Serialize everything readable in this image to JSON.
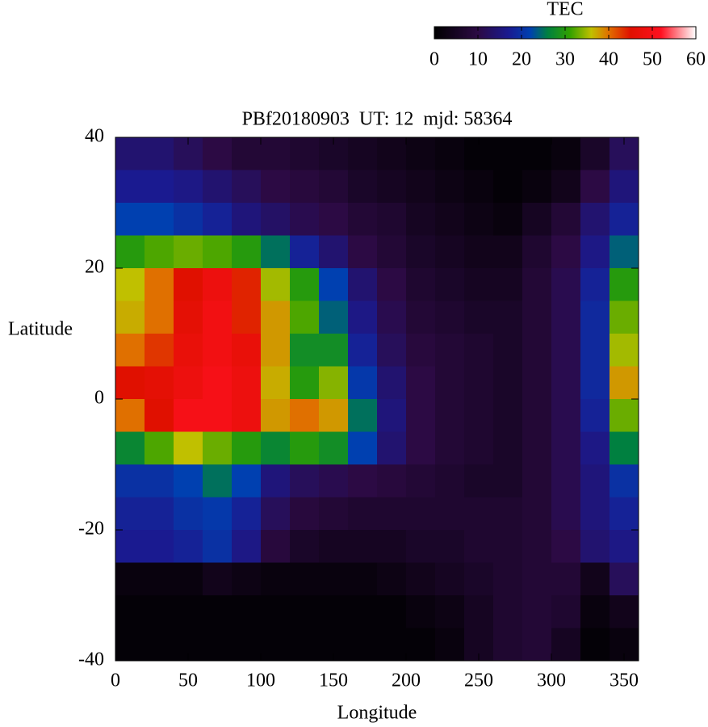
{
  "chart_data": {
    "type": "heatmap",
    "title": "PBf20180903  UT: 12  mjd: 58364",
    "x_label": "Longitude",
    "y_label": "Latitude",
    "colorbar_label": "TEC",
    "x": [
      10,
      30,
      50,
      70,
      90,
      110,
      130,
      150,
      170,
      190,
      210,
      230,
      250,
      270,
      290,
      310,
      330,
      350
    ],
    "y": [
      37.5,
      32.5,
      27.5,
      22.5,
      17.5,
      12.5,
      7.5,
      2.5,
      -2.5,
      -7.5,
      -12.5,
      -17.5,
      -22.5,
      -27.5,
      -32.5,
      -37.5
    ],
    "cell_size": [
      20,
      5
    ],
    "z": [
      [
        14,
        14,
        12,
        10,
        8,
        8,
        7,
        6,
        5,
        4,
        3,
        2,
        1,
        1,
        1,
        2,
        6,
        12
      ],
      [
        17,
        17,
        16,
        14,
        12,
        10,
        9,
        8,
        6,
        5,
        4,
        3,
        2,
        1,
        2,
        4,
        10,
        15
      ],
      [
        22,
        22,
        20,
        18,
        15,
        13,
        11,
        10,
        8,
        7,
        5,
        4,
        3,
        2,
        5,
        8,
        14,
        18
      ],
      [
        30,
        32,
        33,
        32,
        30,
        25,
        18,
        14,
        10,
        8,
        6,
        5,
        4,
        4,
        7,
        10,
        16,
        24
      ],
      [
        36,
        40,
        45,
        48,
        44,
        35,
        30,
        22,
        14,
        10,
        7,
        6,
        5,
        5,
        8,
        11,
        18,
        30
      ],
      [
        37,
        40,
        46,
        49,
        44,
        38,
        32,
        24,
        16,
        11,
        8,
        7,
        6,
        6,
        8,
        11,
        19,
        33
      ],
      [
        40,
        43,
        47,
        49,
        47,
        38,
        28,
        28,
        18,
        12,
        9,
        8,
        7,
        6,
        8,
        11,
        19,
        35
      ],
      [
        45,
        46,
        48,
        50,
        48,
        37,
        30,
        34,
        21,
        14,
        10,
        8,
        7,
        6,
        8,
        11,
        19,
        38
      ],
      [
        40,
        45,
        50,
        50,
        48,
        38,
        40,
        38,
        25,
        15,
        10,
        8,
        7,
        6,
        8,
        11,
        18,
        33
      ],
      [
        27,
        32,
        36,
        33,
        30,
        27,
        30,
        28,
        22,
        14,
        10,
        8,
        7,
        6,
        8,
        11,
        16,
        26
      ],
      [
        20,
        20,
        22,
        25,
        22,
        15,
        12,
        11,
        10,
        9,
        8,
        7,
        6,
        6,
        8,
        11,
        15,
        20
      ],
      [
        18,
        18,
        20,
        21,
        18,
        12,
        9,
        8,
        7,
        7,
        7,
        7,
        7,
        7,
        8,
        11,
        15,
        18
      ],
      [
        17,
        17,
        18,
        20,
        16,
        9,
        6,
        5,
        5,
        5,
        6,
        6,
        7,
        7,
        8,
        10,
        14,
        16
      ],
      [
        2,
        2,
        2,
        4,
        3,
        2,
        2,
        2,
        2,
        3,
        4,
        5,
        6,
        7,
        8,
        8,
        4,
        12
      ],
      [
        1,
        1,
        1,
        1,
        1,
        1,
        1,
        1,
        1,
        1,
        2,
        3,
        5,
        7,
        8,
        7,
        2,
        4
      ],
      [
        1,
        1,
        1,
        1,
        1,
        1,
        1,
        1,
        1,
        1,
        1,
        2,
        5,
        7,
        8,
        5,
        1,
        2
      ]
    ],
    "xlim": [
      0,
      360
    ],
    "xticks": [
      0,
      50,
      100,
      150,
      200,
      250,
      300,
      350
    ],
    "ylim": [
      -40,
      40
    ],
    "yticks": [
      -40,
      -20,
      0,
      20,
      40
    ],
    "zlim": [
      0,
      60
    ],
    "zticks": [
      0,
      10,
      20,
      30,
      40,
      50,
      60
    ],
    "colorscale": [
      [
        0,
        "#000000"
      ],
      [
        10,
        "#2c0a44"
      ],
      [
        17,
        "#1a1a90"
      ],
      [
        22,
        "#0040b0"
      ],
      [
        26,
        "#008040"
      ],
      [
        31,
        "#30a000"
      ],
      [
        36,
        "#c0c000"
      ],
      [
        40,
        "#e07000"
      ],
      [
        45,
        "#e01000"
      ],
      [
        52,
        "#ff1020"
      ],
      [
        60,
        "#ffffff"
      ]
    ]
  }
}
